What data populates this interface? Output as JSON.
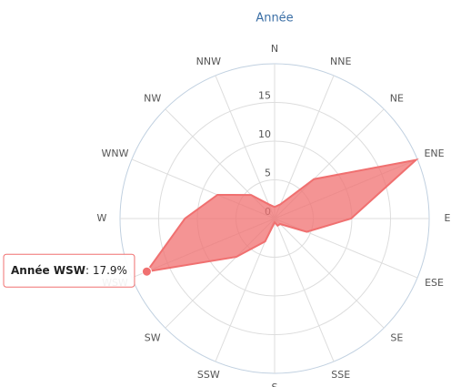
{
  "chart_data": {
    "type": "polar",
    "title": "Année",
    "categories": [
      "N",
      "NNE",
      "NE",
      "ENE",
      "E",
      "ESE",
      "SE",
      "SSE",
      "S",
      "SSW",
      "SW",
      "WSW",
      "W",
      "WNW",
      "NW",
      "NNW"
    ],
    "series": [
      {
        "name": "Année",
        "color": "#f07070",
        "values": [
          1.5,
          2,
          7.2,
          19.8,
          9.9,
          4.5,
          1,
          1,
          0.5,
          3.2,
          7,
          17.9,
          11.6,
          8,
          4.3,
          2
        ],
        "value_labels": [
          null,
          null,
          null,
          null,
          null,
          null,
          null,
          null,
          null,
          null,
          null,
          "17.9%",
          null,
          null,
          null,
          null
        ]
      }
    ],
    "ylim": [
      0,
      20
    ],
    "yticks": [
      0,
      5,
      10,
      15
    ],
    "grid": true,
    "tooltip": {
      "index": 11
    }
  }
}
